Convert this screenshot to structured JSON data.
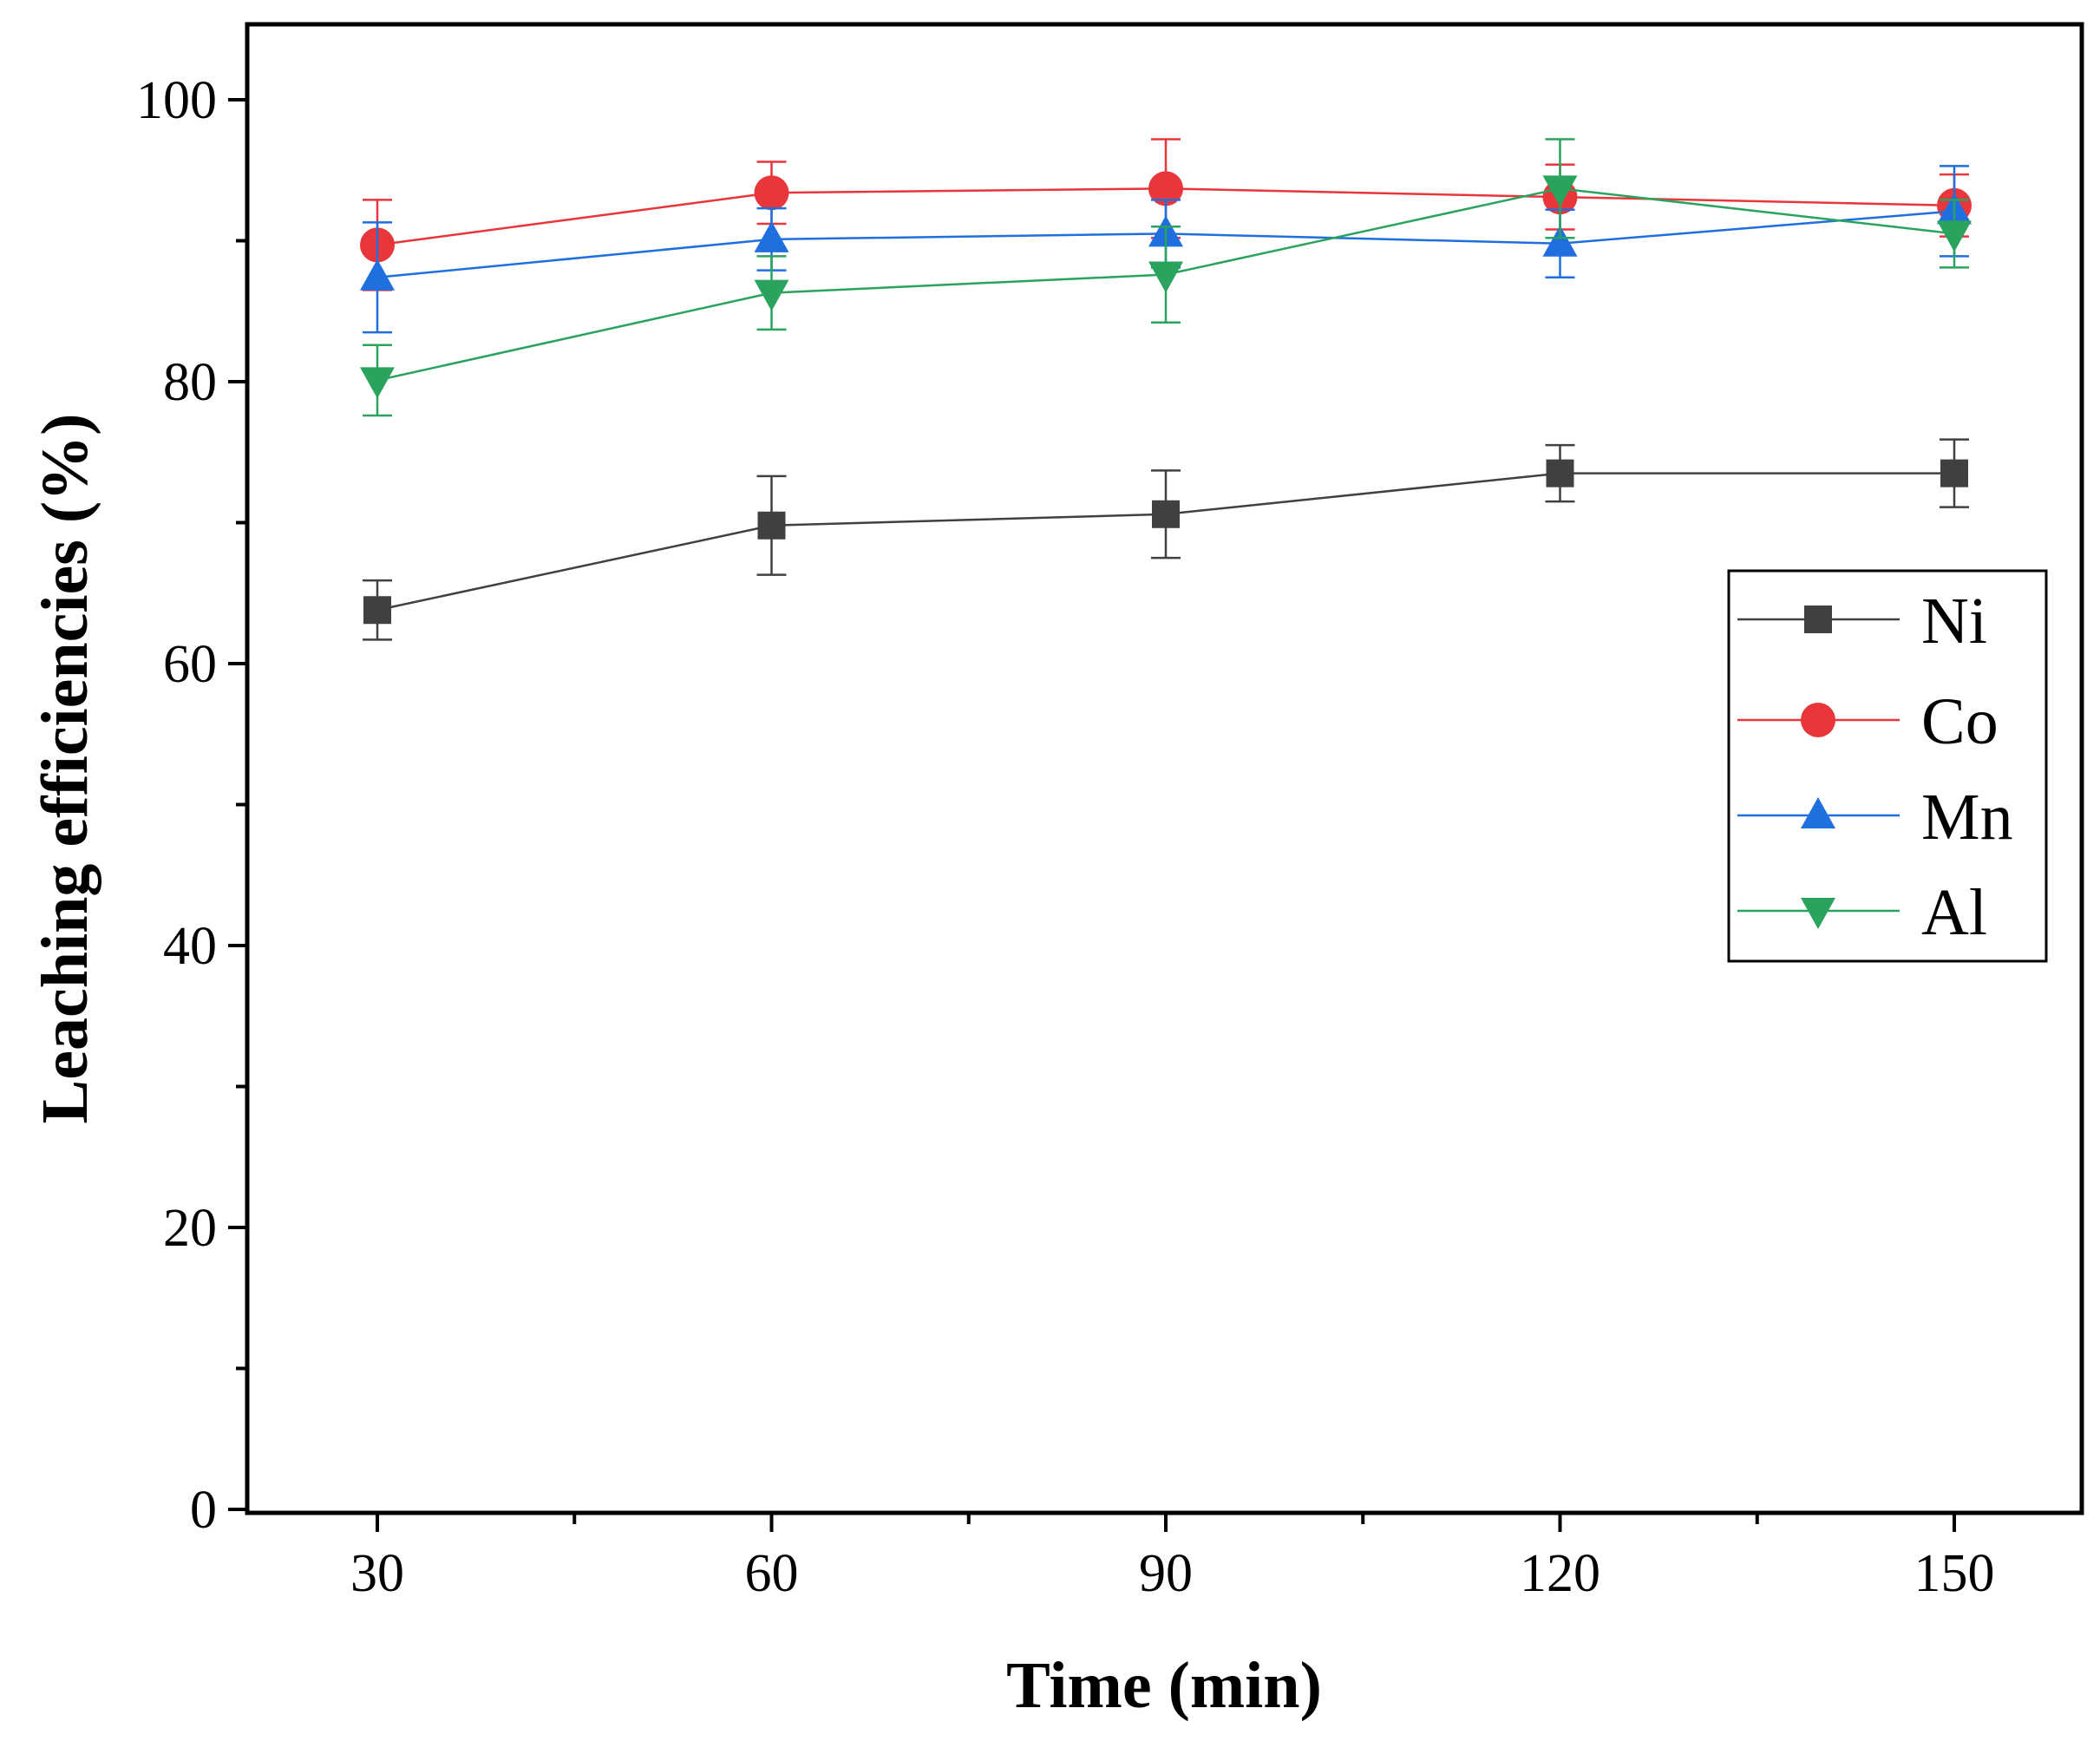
{
  "chart_data": {
    "type": "line",
    "xlabel": "Time (min)",
    "ylabel": "Leaching efficiencies (%)",
    "xlim": [
      20,
      160
    ],
    "ylim": [
      0,
      105
    ],
    "xticks": [
      30,
      60,
      90,
      120,
      150
    ],
    "xtick_labels": [
      "30",
      "60",
      "90",
      "120",
      "150"
    ],
    "yticks": [
      0,
      20,
      40,
      60,
      80,
      100
    ],
    "ytick_labels": [
      "0",
      "20",
      "40",
      "60",
      "80",
      "100"
    ],
    "legend_position": "right",
    "x": [
      30,
      60,
      90,
      120,
      150
    ],
    "series": [
      {
        "name": "Ni",
        "marker": "square",
        "color": "#404040",
        "values": [
          63.8,
          69.8,
          70.6,
          73.5,
          73.5
        ],
        "errors": [
          2.1,
          3.5,
          3.1,
          2.0,
          2.4
        ]
      },
      {
        "name": "Co",
        "marker": "circle",
        "color": "#e8363a",
        "values": [
          89.7,
          93.4,
          93.7,
          93.1,
          92.5
        ],
        "errors": [
          3.2,
          2.2,
          3.5,
          2.3,
          2.2
        ]
      },
      {
        "name": "Mn",
        "marker": "triangle-up",
        "color": "#1f6fdf",
        "values": [
          87.4,
          90.1,
          90.5,
          89.8,
          92.1
        ],
        "errors": [
          3.9,
          2.2,
          2.4,
          2.4,
          3.2
        ]
      },
      {
        "name": "Al",
        "marker": "triangle-down",
        "color": "#2aa35e",
        "values": [
          80.1,
          86.3,
          87.6,
          93.7,
          90.5
        ],
        "errors": [
          2.5,
          2.6,
          3.4,
          3.5,
          2.4
        ]
      }
    ]
  }
}
